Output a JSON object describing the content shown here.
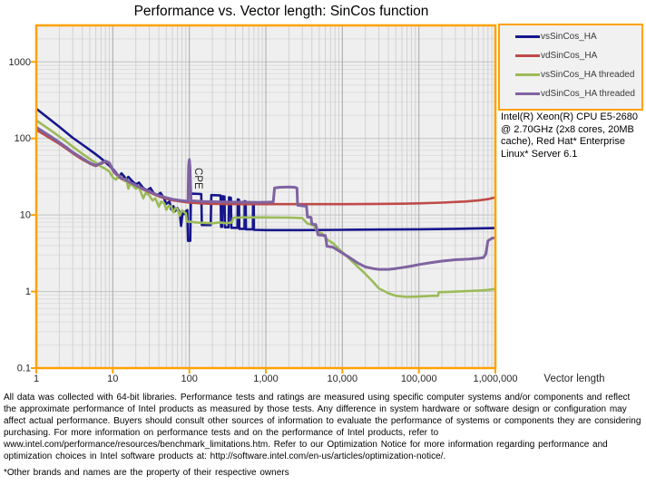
{
  "title": "Performance vs. Vector length: SinCos function",
  "axes": {
    "y_label": "CPE",
    "x_label": "Vector length",
    "y_ticks": [
      "1000",
      "100",
      "10",
      "1",
      "0.1"
    ],
    "x_ticks": [
      "1",
      "10",
      "100",
      "1,000",
      "10,000",
      "100,000",
      "1,000,000"
    ]
  },
  "legend": {
    "items": [
      {
        "label": "vsSinCos_HA",
        "color": "#16168C"
      },
      {
        "label": "vdSinCos_HA",
        "color": "#BE4B48"
      },
      {
        "label": "vsSinCos_HA threaded",
        "color": "#9BBB59"
      },
      {
        "label": "vdSinCos_HA threaded",
        "color": "#7F63A1"
      }
    ]
  },
  "annotation": "Intel(R) Xeon(R) CPU E5-2680 @ 2.70GHz (2x8 cores, 20MB cache), Red Hat* Enterprise Linux* Server 6.1",
  "footer": {
    "disclaimer": "All data was collected with 64-bit libraries. Performance tests and ratings are measured using specific computer systems and/or components and reflect the approximate performance of Intel products as measured by those tests. Any difference in system hardware or software design or configuration may affect actual performance. Buyers should consult other sources of information to evaluate the performance of systems or components they are considering purchasing. For more information on performance tests and on the performance of Intel products, refer to www.intel.com/performance/resources/benchmark_limitations.htm.  Refer to our Optimization Notice for more information regarding performance and optimization choices in Intel software products at: http://software.intel.com/en-us/articles/optimization-notice/.",
    "brands_note": "*Other brands and names are the property of their respective owners"
  },
  "colors": {
    "axis_border": "#FFA200",
    "plot_bg": "#EFEFEF",
    "grid_minor_h": "#DEDEDE",
    "grid_major_h": "#C4C4C4",
    "grid_minor_v": "#D2D2D2",
    "grid_major_v": "#A8A8A8",
    "tick_text": "#262626"
  },
  "chart_data": {
    "type": "line",
    "title": "Performance vs. Vector length: SinCos function",
    "xlabel": "Vector length",
    "ylabel": "CPE",
    "x_scale": "log",
    "y_scale": "log",
    "xlim": [
      1,
      1000000
    ],
    "ylim": [
      0.1,
      3000
    ],
    "x_tick_values": [
      1,
      10,
      100,
      1000,
      10000,
      100000,
      1000000
    ],
    "y_tick_values": [
      1000,
      100,
      10,
      1,
      0.1
    ],
    "grid": true,
    "legend_position": "top-right",
    "series": [
      {
        "name": "vsSinCos_HA",
        "color": "#16168C",
        "width": 2.6,
        "points": [
          [
            1,
            245
          ],
          [
            1.5,
            178
          ],
          [
            2,
            142
          ],
          [
            2.5,
            118
          ],
          [
            3,
            102
          ],
          [
            4,
            83
          ],
          [
            5,
            71
          ],
          [
            6,
            62
          ],
          [
            7,
            55
          ],
          [
            8,
            49
          ],
          [
            9,
            44
          ],
          [
            10,
            40
          ],
          [
            11,
            36
          ],
          [
            12,
            31
          ],
          [
            13,
            35
          ],
          [
            14,
            32
          ],
          [
            15,
            29
          ],
          [
            16,
            31.5
          ],
          [
            18,
            27.5
          ],
          [
            20,
            25
          ],
          [
            22,
            26.5
          ],
          [
            25,
            22.5
          ],
          [
            28,
            21
          ],
          [
            31,
            22.5
          ],
          [
            34,
            19.5
          ],
          [
            38,
            18
          ],
          [
            42,
            19.5
          ],
          [
            46,
            17
          ],
          [
            50,
            14
          ],
          [
            55,
            15
          ],
          [
            58,
            11.8
          ],
          [
            62,
            13
          ],
          [
            65,
            11.2
          ],
          [
            70,
            12.3
          ],
          [
            75,
            10.6
          ],
          [
            78,
            7.2
          ],
          [
            82,
            11
          ],
          [
            86,
            10.3
          ],
          [
            90,
            11.2
          ],
          [
            94,
            11.6
          ],
          [
            96,
            4.6
          ],
          [
            103,
            4.6
          ],
          [
            105,
            19
          ],
          [
            143,
            18.8
          ],
          [
            146,
            7.4
          ],
          [
            190,
            7.4
          ],
          [
            194,
            18.2
          ],
          [
            256,
            18
          ],
          [
            260,
            7
          ],
          [
            268,
            7
          ],
          [
            272,
            17.6
          ],
          [
            288,
            17.4
          ],
          [
            292,
            6.9
          ],
          [
            326,
            6.9
          ],
          [
            330,
            17
          ],
          [
            350,
            16.8
          ],
          [
            354,
            6.8
          ],
          [
            426,
            6.8
          ],
          [
            430,
            16
          ],
          [
            446,
            15.8
          ],
          [
            450,
            6.6
          ],
          [
            526,
            6.6
          ],
          [
            530,
            15.2
          ],
          [
            546,
            15
          ],
          [
            550,
            6.5
          ],
          [
            676,
            6.5
          ],
          [
            680,
            14.6
          ],
          [
            696,
            14.4
          ],
          [
            700,
            6.4
          ],
          [
            1000,
            6.35
          ],
          [
            3000,
            6.35
          ],
          [
            10000,
            6.4
          ],
          [
            30000,
            6.45
          ],
          [
            100000,
            6.5
          ],
          [
            300000,
            6.6
          ],
          [
            1000000,
            6.75
          ]
        ]
      },
      {
        "name": "vdSinCos_HA",
        "color": "#BE4B48",
        "width": 2.6,
        "points": [
          [
            1,
            130
          ],
          [
            1.5,
            101
          ],
          [
            2,
            85
          ],
          [
            2.5,
            73
          ],
          [
            3,
            64
          ],
          [
            4,
            53
          ],
          [
            5,
            47
          ],
          [
            5.5,
            45
          ],
          [
            6,
            43.5
          ],
          [
            7,
            46.5
          ],
          [
            8,
            50
          ],
          [
            9,
            47
          ],
          [
            10,
            38
          ],
          [
            11,
            34
          ],
          [
            12,
            31.5
          ],
          [
            13,
            29.5
          ],
          [
            15,
            27.5
          ],
          [
            17,
            26
          ],
          [
            20,
            24
          ],
          [
            25,
            21.5
          ],
          [
            30,
            19.8
          ],
          [
            35,
            18.5
          ],
          [
            40,
            17.5
          ],
          [
            50,
            16.3
          ],
          [
            60,
            15.6
          ],
          [
            80,
            14.9
          ],
          [
            100,
            14.5
          ],
          [
            150,
            14.1
          ],
          [
            200,
            14
          ],
          [
            300,
            13.9
          ],
          [
            500,
            13.85
          ],
          [
            1000,
            13.85
          ],
          [
            3000,
            13.85
          ],
          [
            10000,
            13.85
          ],
          [
            30000,
            13.95
          ],
          [
            60000,
            14.05
          ],
          [
            100000,
            14.2
          ],
          [
            200000,
            14.5
          ],
          [
            400000,
            15
          ],
          [
            600000,
            15.5
          ],
          [
            800000,
            16.1
          ],
          [
            950000,
            16.8
          ],
          [
            1000000,
            17
          ]
        ]
      },
      {
        "name": "vsSinCos_HA threaded",
        "color": "#9BBB59",
        "width": 2.6,
        "points": [
          [
            1,
            172
          ],
          [
            1.5,
            130
          ],
          [
            2,
            106
          ],
          [
            2.5,
            90
          ],
          [
            3,
            78
          ],
          [
            4,
            63
          ],
          [
            5,
            54
          ],
          [
            6,
            48
          ],
          [
            7,
            43
          ],
          [
            8,
            40
          ],
          [
            9,
            37
          ],
          [
            10,
            31
          ],
          [
            11,
            29
          ],
          [
            12,
            33
          ],
          [
            13,
            31
          ],
          [
            14,
            28
          ],
          [
            15,
            29.5
          ],
          [
            16,
            22
          ],
          [
            17,
            26
          ],
          [
            18,
            24.5
          ],
          [
            20,
            22
          ],
          [
            22,
            23
          ],
          [
            25,
            16.5
          ],
          [
            27,
            19.5
          ],
          [
            30,
            18
          ],
          [
            33,
            15.5
          ],
          [
            36,
            16.5
          ],
          [
            40,
            12.8
          ],
          [
            43,
            15
          ],
          [
            47,
            14.2
          ],
          [
            50,
            11.7
          ],
          [
            54,
            13.3
          ],
          [
            58,
            12.8
          ],
          [
            62,
            10.8
          ],
          [
            66,
            12.4
          ],
          [
            70,
            12
          ],
          [
            75,
            9.8
          ],
          [
            80,
            11.5
          ],
          [
            85,
            11
          ],
          [
            90,
            10.5
          ],
          [
            93,
            8.2
          ],
          [
            100,
            8.2
          ],
          [
            120,
            8
          ],
          [
            150,
            7.9
          ],
          [
            200,
            7.8
          ],
          [
            250,
            8
          ],
          [
            300,
            7.8
          ],
          [
            360,
            8
          ],
          [
            375,
            9.2
          ],
          [
            500,
            9.3
          ],
          [
            1000,
            9.3
          ],
          [
            2000,
            9.25
          ],
          [
            3000,
            9.1
          ],
          [
            3500,
            7.7
          ],
          [
            4200,
            7.4
          ],
          [
            4700,
            6.1
          ],
          [
            5500,
            5.7
          ],
          [
            6300,
            4.8
          ],
          [
            7500,
            4.3
          ],
          [
            9000,
            3.6
          ],
          [
            11000,
            3
          ],
          [
            13000,
            2.55
          ],
          [
            16000,
            2.1
          ],
          [
            20000,
            1.7
          ],
          [
            25000,
            1.35
          ],
          [
            30000,
            1.1
          ],
          [
            40000,
            0.95
          ],
          [
            50000,
            0.88
          ],
          [
            70000,
            0.85
          ],
          [
            100000,
            0.86
          ],
          [
            150000,
            0.88
          ],
          [
            178000,
            0.88
          ],
          [
            182000,
            0.98
          ],
          [
            250000,
            0.99
          ],
          [
            400000,
            1.01
          ],
          [
            600000,
            1.03
          ],
          [
            800000,
            1.05
          ],
          [
            1000000,
            1.08
          ]
        ]
      },
      {
        "name": "vdSinCos_HA threaded",
        "color": "#7F63A1",
        "width": 3,
        "points": [
          [
            1,
            140
          ],
          [
            1.5,
            108
          ],
          [
            2,
            89
          ],
          [
            2.5,
            76
          ],
          [
            3,
            66
          ],
          [
            4,
            55
          ],
          [
            5,
            48
          ],
          [
            5.5,
            46
          ],
          [
            6,
            44.5
          ],
          [
            7,
            47.5
          ],
          [
            8,
            51
          ],
          [
            9,
            48
          ],
          [
            10,
            39
          ],
          [
            11,
            35
          ],
          [
            12,
            32.5
          ],
          [
            13,
            30.5
          ],
          [
            15,
            28.5
          ],
          [
            17,
            26.5
          ],
          [
            20,
            24.5
          ],
          [
            25,
            22
          ],
          [
            30,
            20.3
          ],
          [
            35,
            19
          ],
          [
            40,
            18
          ],
          [
            50,
            16.8
          ],
          [
            60,
            16.1
          ],
          [
            70,
            15.7
          ],
          [
            80,
            15.4
          ],
          [
            90,
            15.2
          ],
          [
            96,
            15.1
          ],
          [
            98,
            44
          ],
          [
            100,
            53
          ],
          [
            102,
            42
          ],
          [
            105,
            15.3
          ],
          [
            150,
            15
          ],
          [
            200,
            14.9
          ],
          [
            300,
            14.8
          ],
          [
            500,
            14.7
          ],
          [
            800,
            14.6
          ],
          [
            1100,
            14.7
          ],
          [
            1250,
            14.8
          ],
          [
            1300,
            22.5
          ],
          [
            1500,
            23
          ],
          [
            2000,
            23.2
          ],
          [
            2400,
            23
          ],
          [
            2550,
            22.5
          ],
          [
            2600,
            13.4
          ],
          [
            3000,
            13.2
          ],
          [
            3400,
            13
          ],
          [
            3500,
            9.4
          ],
          [
            3900,
            9.3
          ],
          [
            4000,
            7.6
          ],
          [
            4500,
            7.5
          ],
          [
            4800,
            5.5
          ],
          [
            6000,
            5.4
          ],
          [
            6300,
            3.9
          ],
          [
            7500,
            3.8
          ],
          [
            9000,
            3.4
          ],
          [
            11000,
            3
          ],
          [
            13000,
            2.7
          ],
          [
            16000,
            2.35
          ],
          [
            20000,
            2.1
          ],
          [
            25000,
            2
          ],
          [
            30000,
            1.95
          ],
          [
            40000,
            1.95
          ],
          [
            50000,
            2
          ],
          [
            60000,
            2.05
          ],
          [
            80000,
            2.15
          ],
          [
            100000,
            2.25
          ],
          [
            150000,
            2.4
          ],
          [
            200000,
            2.5
          ],
          [
            300000,
            2.6
          ],
          [
            450000,
            2.65
          ],
          [
            600000,
            2.72
          ],
          [
            700000,
            2.78
          ],
          [
            750000,
            3.1
          ],
          [
            800000,
            4.6
          ],
          [
            900000,
            4.95
          ],
          [
            1000000,
            5.05
          ]
        ]
      }
    ]
  }
}
